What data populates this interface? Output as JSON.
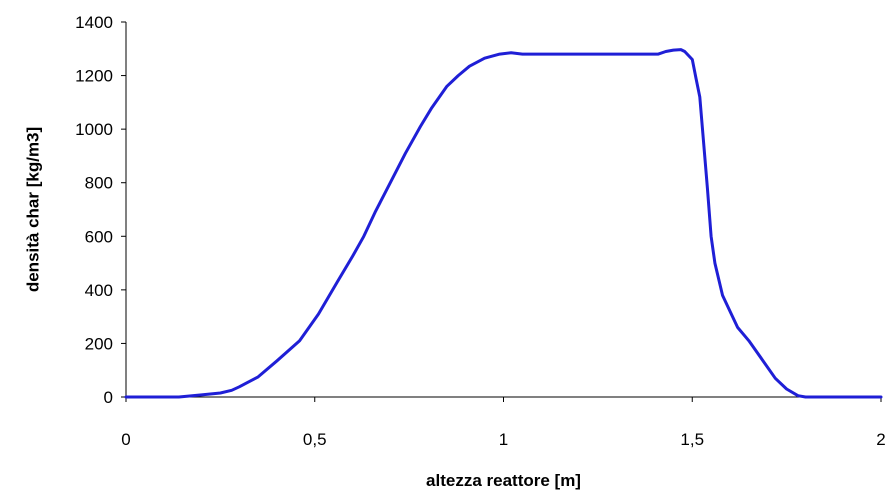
{
  "chart_data": {
    "type": "line",
    "title": "",
    "xlabel": "altezza reattore [m]",
    "ylabel": "densità char [kg/m3]",
    "xlim": [
      0,
      2
    ],
    "ylim": [
      0,
      1400
    ],
    "x_ticks": [
      0,
      0.5,
      1,
      1.5,
      2
    ],
    "x_tick_labels": [
      "0",
      "0,5",
      "1",
      "1,5",
      "2"
    ],
    "y_ticks": [
      0,
      200,
      400,
      600,
      800,
      1000,
      1200,
      1400
    ],
    "y_tick_labels": [
      "0",
      "200",
      "400",
      "600",
      "800",
      "1000",
      "1200",
      "1400"
    ],
    "grid": false,
    "legend": "none",
    "line_color": "#1f1fd6",
    "series": [
      {
        "x": [
          0,
          0.14,
          0.2,
          0.25,
          0.28,
          0.3,
          0.35,
          0.4,
          0.46,
          0.51,
          0.56,
          0.6,
          0.63,
          0.66,
          0.7,
          0.74,
          0.78,
          0.81,
          0.85,
          0.88,
          0.91,
          0.95,
          0.99,
          1.02,
          1.05,
          1.1,
          1.2,
          1.3,
          1.41,
          1.43,
          1.45,
          1.47,
          1.48,
          1.5,
          1.51,
          1.52,
          1.53,
          1.54,
          1.55,
          1.56,
          1.58,
          1.6,
          1.62,
          1.65,
          1.69,
          1.72,
          1.75,
          1.78,
          1.8,
          1.81,
          1.82,
          1.85,
          1.9,
          1.95,
          2.0
        ],
        "y": [
          0,
          0,
          8,
          15,
          25,
          38,
          75,
          135,
          210,
          310,
          430,
          525,
          600,
          690,
          800,
          910,
          1010,
          1080,
          1160,
          1200,
          1235,
          1265,
          1280,
          1285,
          1280,
          1280,
          1280,
          1280,
          1280,
          1290,
          1295,
          1297,
          1290,
          1260,
          1190,
          1120,
          950,
          780,
          600,
          500,
          380,
          320,
          260,
          210,
          130,
          70,
          30,
          5,
          0,
          0,
          0,
          0,
          0,
          0,
          0
        ]
      }
    ]
  }
}
